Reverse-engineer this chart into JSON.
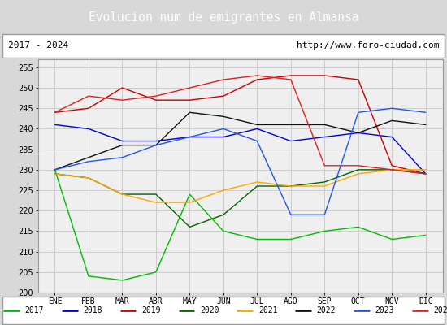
{
  "title": "Evolucion num de emigrantes en Almansa",
  "subtitle_left": "2017 - 2024",
  "subtitle_right": "http://www.foro-ciudad.com",
  "title_bg_color": "#5b8dd9",
  "title_text_color": "white",
  "months": [
    "ENE",
    "FEB",
    "MAR",
    "ABR",
    "MAY",
    "JUN",
    "JUL",
    "AGO",
    "SEP",
    "OCT",
    "NOV",
    "DIC"
  ],
  "ylim": [
    200,
    257
  ],
  "yticks": [
    200,
    205,
    210,
    215,
    220,
    225,
    230,
    235,
    240,
    245,
    250,
    255
  ],
  "series": {
    "2017": {
      "color": "#00bb00",
      "values": [
        230,
        204,
        203,
        205,
        224,
        215,
        213,
        213,
        215,
        216,
        213,
        214
      ]
    },
    "2018": {
      "color": "#0000dd",
      "values": [
        241,
        240,
        237,
        237,
        238,
        238,
        240,
        237,
        238,
        239,
        238,
        229
      ]
    },
    "2019": {
      "color": "#cc0000",
      "values": [
        244,
        245,
        250,
        247,
        247,
        248,
        252,
        253,
        253,
        252,
        231,
        229
      ]
    },
    "2020": {
      "color": "#006600",
      "values": [
        229,
        228,
        224,
        224,
        216,
        219,
        226,
        226,
        227,
        230,
        230,
        229
      ]
    },
    "2021": {
      "color": "#ffa500",
      "values": [
        229,
        228,
        224,
        222,
        222,
        225,
        227,
        226,
        226,
        229,
        230,
        230
      ]
    },
    "2022": {
      "color": "#111111",
      "values": [
        230,
        233,
        236,
        236,
        244,
        243,
        241,
        241,
        241,
        239,
        242,
        241
      ]
    },
    "2023": {
      "color": "#2255ee",
      "values": [
        230,
        232,
        233,
        236,
        238,
        240,
        237,
        219,
        219,
        244,
        245,
        244
      ]
    },
    "2024": {
      "color": "#dd2222",
      "values": [
        244,
        248,
        247,
        248,
        250,
        252,
        253,
        252,
        231,
        231,
        230,
        229
      ]
    }
  },
  "grid_color": "#cccccc",
  "plot_bg_color": "#efefef",
  "outer_bg_color": "#d8d8d8",
  "border_color": "#999999"
}
